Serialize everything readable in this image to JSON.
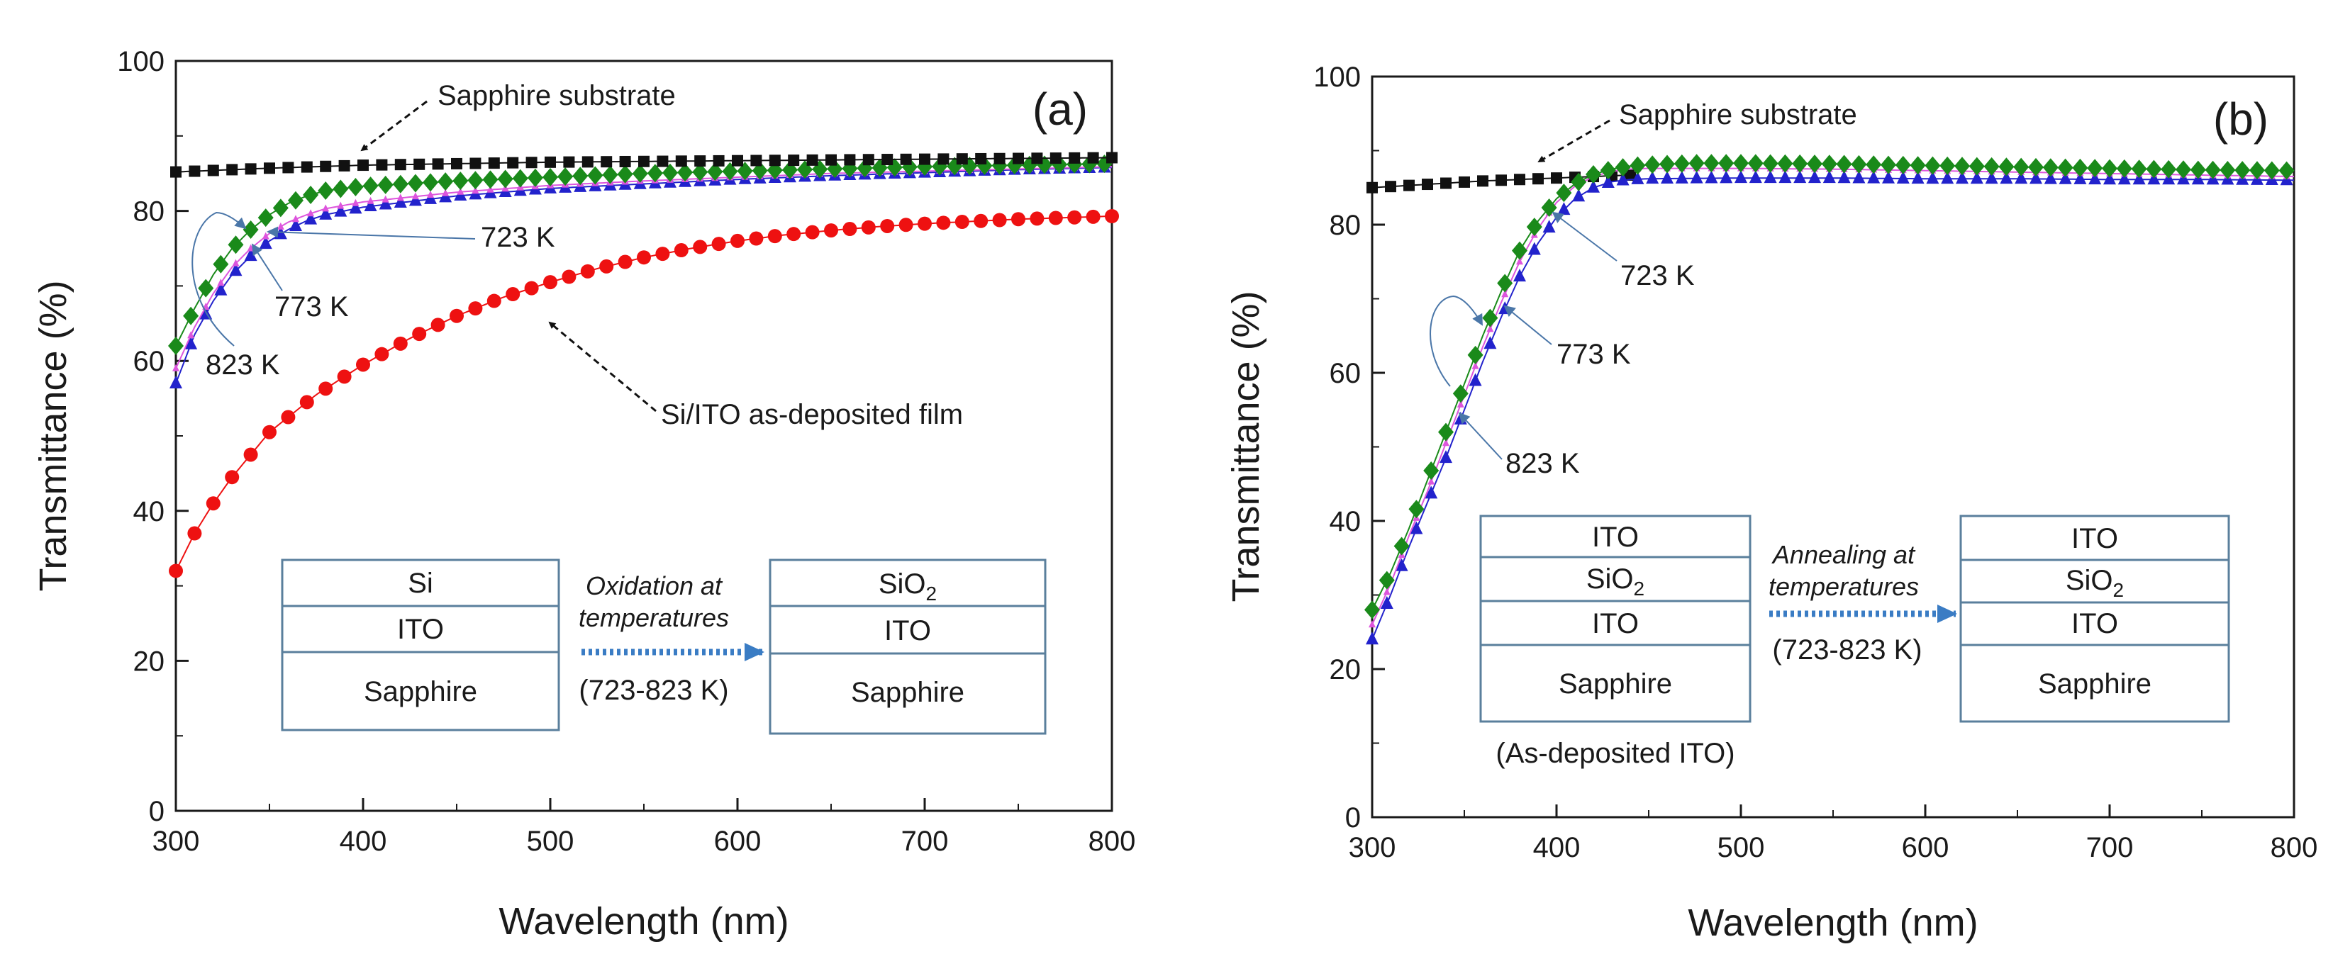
{
  "colors": {
    "sapphire": "#111111",
    "as_deposited": "#ee1111",
    "k723": "#2222cc",
    "k773": "#dd55dd",
    "k823": "#1a8a1a",
    "arrow_blue": "#3a7cc4",
    "box_border": "#5a7f9c"
  },
  "chart_data": [
    {
      "type": "scatter",
      "panel_label": "(a)",
      "xlabel": "Wavelength (nm)",
      "ylabel": "Transmittance (%)",
      "xlim": [
        300,
        800
      ],
      "ylim": [
        0,
        100
      ],
      "xticks": [
        "300",
        "400",
        "500",
        "600",
        "700",
        "800"
      ],
      "yticks": [
        "0",
        "20",
        "40",
        "60",
        "80",
        "100"
      ],
      "series": [
        {
          "name": "Sapphire substrate",
          "key": "sapphire",
          "marker": "square",
          "x": [
            300,
            350,
            400,
            450,
            500,
            550,
            600,
            650,
            700,
            750,
            800
          ],
          "y": [
            85.2,
            85.7,
            86.1,
            86.3,
            86.5,
            86.6,
            86.7,
            86.8,
            86.9,
            87.0,
            87.1
          ]
        },
        {
          "name": "Si/ITO as-deposited film",
          "key": "as_deposited",
          "marker": "circle",
          "x": [
            300,
            310,
            320,
            330,
            340,
            350,
            375,
            400,
            425,
            450,
            475,
            500,
            525,
            550,
            575,
            600,
            625,
            650,
            675,
            700,
            725,
            750,
            775,
            800
          ],
          "y": [
            32,
            37,
            41,
            44.5,
            47.5,
            50.5,
            55.5,
            59.5,
            63,
            66,
            68.5,
            70.5,
            72.3,
            73.8,
            75,
            76,
            76.8,
            77.4,
            77.9,
            78.3,
            78.6,
            78.9,
            79.1,
            79.3
          ]
        },
        {
          "name": "723 K",
          "key": "k723",
          "marker": "triangle",
          "x": [
            300,
            310,
            320,
            330,
            340,
            350,
            360,
            370,
            380,
            400,
            450,
            500,
            550,
            600,
            650,
            700,
            750,
            800
          ],
          "y": [
            57,
            63.5,
            68,
            71.5,
            74,
            76,
            77.5,
            78.7,
            79.5,
            80.5,
            82,
            83,
            83.6,
            84.2,
            84.7,
            85.1,
            85.5,
            85.8
          ]
        },
        {
          "name": "773 K",
          "key": "k773",
          "marker": "triangle-small",
          "x": [
            300,
            310,
            320,
            330,
            340,
            350,
            360,
            370,
            380,
            400,
            450,
            500,
            550,
            600,
            650,
            700,
            750,
            800
          ],
          "y": [
            59,
            64.5,
            69,
            72.5,
            75,
            77,
            78.5,
            79.5,
            80.3,
            81.2,
            82.5,
            83.4,
            84,
            84.5,
            85,
            85.3,
            85.6,
            85.9
          ]
        },
        {
          "name": "823 K",
          "key": "k823",
          "marker": "diamond",
          "x": [
            300,
            310,
            320,
            330,
            340,
            350,
            360,
            370,
            380,
            400,
            450,
            500,
            550,
            600,
            650,
            700,
            750,
            800
          ],
          "y": [
            62,
            67,
            71.5,
            75,
            77.5,
            79.5,
            81,
            82,
            82.7,
            83.3,
            84,
            84.5,
            85,
            85.3,
            85.6,
            85.9,
            86.1,
            86.3
          ]
        }
      ],
      "annotations": [
        "Sapphire substrate",
        "723 K",
        "773 K",
        "823 K",
        "Si/ITO as-deposited film"
      ],
      "inset": {
        "left_layers": [
          "Si",
          "ITO",
          "Sapphire"
        ],
        "arrow_text_1": "Oxidation at",
        "arrow_text_2": "temperatures",
        "range_text": "(723-823 K)",
        "right_layer_1_main": "SiO",
        "right_layer_1_sub": "2",
        "right_layers": [
          "ITO",
          "Sapphire"
        ]
      }
    },
    {
      "type": "scatter",
      "panel_label": "(b)",
      "xlabel": "Wavelength (nm)",
      "ylabel": "Transmittance (%)",
      "xlim": [
        300,
        800
      ],
      "ylim": [
        0,
        100
      ],
      "xticks": [
        "300",
        "400",
        "500",
        "600",
        "700",
        "800"
      ],
      "yticks": [
        "0",
        "20",
        "40",
        "60",
        "80",
        "100"
      ],
      "series": [
        {
          "name": "Sapphire substrate",
          "key": "sapphire",
          "marker": "square",
          "x": [
            300,
            320,
            340,
            360,
            380,
            400,
            420,
            440
          ],
          "y": [
            85,
            85.3,
            85.6,
            85.9,
            86.1,
            86.3,
            86.5,
            86.7
          ]
        },
        {
          "name": "723 K",
          "key": "k723",
          "marker": "triangle",
          "x": [
            300,
            310,
            320,
            330,
            340,
            350,
            360,
            370,
            380,
            390,
            400,
            410,
            420,
            430,
            440,
            450,
            500,
            550,
            600,
            650,
            700,
            750,
            800
          ],
          "y": [
            24,
            30,
            36.5,
            42.5,
            48.5,
            55,
            61.5,
            67.5,
            73,
            77.5,
            81,
            83.5,
            85,
            85.8,
            86.1,
            86.2,
            86.3,
            86.3,
            86.2,
            86.2,
            86.1,
            86.1,
            86.0
          ]
        },
        {
          "name": "773 K",
          "key": "k773",
          "marker": "triangle-small",
          "x": [
            300,
            310,
            320,
            330,
            340,
            350,
            360,
            370,
            380,
            390,
            400,
            410,
            420,
            430,
            440,
            450,
            500,
            550,
            600,
            650,
            700,
            750,
            800
          ],
          "y": [
            26,
            31.5,
            38,
            44,
            50.5,
            57,
            63.5,
            69.5,
            75,
            79.5,
            83,
            85.2,
            86.5,
            87.2,
            87.5,
            87.6,
            87.6,
            87.5,
            87.3,
            87.1,
            86.9,
            86.7,
            86.5
          ]
        },
        {
          "name": "823 K",
          "key": "k823",
          "marker": "diamond",
          "x": [
            300,
            310,
            320,
            330,
            340,
            350,
            360,
            370,
            380,
            390,
            400,
            410,
            420,
            430,
            440,
            450,
            475,
            500,
            550,
            600,
            650,
            700,
            750,
            800
          ],
          "y": [
            28,
            33,
            39,
            45.5,
            52,
            58.5,
            65,
            71,
            76.5,
            80.5,
            83.5,
            85.5,
            86.8,
            87.5,
            87.9,
            88.1,
            88.3,
            88.3,
            88.2,
            88,
            87.8,
            87.6,
            87.4,
            87.3
          ]
        }
      ],
      "annotations": [
        "Sapphire substrate",
        "723 K",
        "773 K",
        "823 K"
      ],
      "inset": {
        "left_layer_1": "ITO",
        "left_layer_2_main": "SiO",
        "left_layer_2_sub": "2",
        "left_layer_3": "ITO",
        "left_layer_4": "Sapphire",
        "left_caption": "(As-deposited ITO)",
        "arrow_text_1": "Annealing at",
        "arrow_text_2": "temperatures",
        "range_text": "(723-823 K)",
        "right_layer_1": "ITO",
        "right_layer_2_main": "SiO",
        "right_layer_2_sub": "2",
        "right_layer_3": "ITO",
        "right_layer_4": "Sapphire"
      }
    }
  ]
}
